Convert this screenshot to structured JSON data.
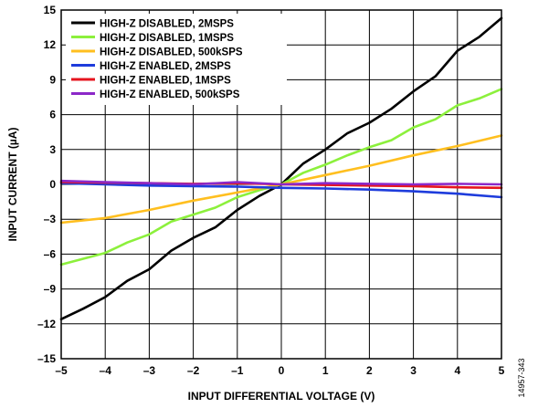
{
  "figure_id": "14957-343",
  "chart_data": {
    "type": "line",
    "xlabel": "INPUT DIFFERENTIAL VOLTAGE (V)",
    "ylabel": "INPUT CURRENT (µA)",
    "xlim": [
      -5,
      5
    ],
    "ylim": [
      -15,
      15
    ],
    "x_ticks": [
      -5,
      -4,
      -3,
      -2,
      -1,
      0,
      1,
      2,
      3,
      4,
      5
    ],
    "y_ticks": [
      -15,
      -12,
      -9,
      -6,
      -3,
      0,
      3,
      6,
      9,
      12,
      15
    ],
    "x_tick_labels": [
      "–5",
      "–4",
      "–3",
      "–2",
      "–1",
      "0",
      "1",
      "2",
      "3",
      "4",
      "5"
    ],
    "y_tick_labels": [
      "–15",
      "–12",
      "–9",
      "–6",
      "–3",
      "0",
      "3",
      "6",
      "9",
      "12",
      "15"
    ],
    "grid": true,
    "legend_position": "top-left",
    "series": [
      {
        "name": "HIGH-Z DISABLED, 2MSPS",
        "color": "#000000",
        "x": [
          -5,
          -4.5,
          -4,
          -3.5,
          -3,
          -2.5,
          -2,
          -1.5,
          -1,
          -0.5,
          0,
          0.5,
          1,
          1.5,
          2,
          2.5,
          3,
          3.5,
          4,
          4.5,
          5
        ],
        "y": [
          -11.6,
          -10.7,
          -9.7,
          -8.3,
          -7.3,
          -5.7,
          -4.6,
          -3.7,
          -2.2,
          -1.0,
          0,
          1.8,
          3.0,
          4.4,
          5.3,
          6.5,
          8.0,
          9.3,
          11.5,
          12.7,
          14.3
        ]
      },
      {
        "name": "HIGH-Z DISABLED, 1MSPS",
        "color": "#8cf03c",
        "x": [
          -5,
          -4.5,
          -4,
          -3.5,
          -3,
          -2.5,
          -2,
          -1.5,
          -1,
          -0.5,
          0,
          0.5,
          1,
          1.5,
          2,
          2.5,
          3,
          3.5,
          4,
          4.5,
          5
        ],
        "y": [
          -6.9,
          -6.4,
          -5.9,
          -5.0,
          -4.3,
          -3.2,
          -2.6,
          -2.0,
          -1.1,
          -0.5,
          0,
          1.0,
          1.7,
          2.5,
          3.2,
          3.8,
          4.9,
          5.6,
          6.8,
          7.4,
          8.2
        ]
      },
      {
        "name": "HIGH-Z DISABLED, 500kSPS",
        "color": "#ffbf1f",
        "x": [
          -5,
          -4,
          -3,
          -2,
          -1,
          0,
          1,
          2,
          3,
          4,
          5
        ],
        "y": [
          -3.3,
          -2.9,
          -2.2,
          -1.4,
          -0.7,
          0,
          0.8,
          1.6,
          2.5,
          3.3,
          4.2
        ]
      },
      {
        "name": "HIGH-Z ENABLED, 2MSPS",
        "color": "#1e3cdc",
        "x": [
          -5,
          -4,
          -3,
          -2,
          -1,
          0,
          1,
          2,
          3,
          4,
          5
        ],
        "y": [
          0.1,
          0.0,
          -0.1,
          -0.15,
          -0.2,
          -0.3,
          -0.35,
          -0.45,
          -0.6,
          -0.8,
          -1.1
        ]
      },
      {
        "name": "HIGH-Z ENABLED, 1MSPS",
        "color": "#e6141e",
        "x": [
          -5,
          -4,
          -3,
          -2,
          -1,
          0,
          1,
          2,
          3,
          4,
          5
        ],
        "y": [
          0.2,
          0.15,
          0.1,
          0.05,
          0.1,
          0.0,
          -0.05,
          -0.1,
          -0.15,
          -0.25,
          -0.3
        ]
      },
      {
        "name": "HIGH-Z ENABLED, 500kSPS",
        "color": "#8c28c8",
        "x": [
          -5,
          -4,
          -3,
          -2,
          -1,
          0,
          1,
          2,
          3,
          4,
          5
        ],
        "y": [
          0.3,
          0.2,
          0.1,
          0.0,
          0.2,
          0.0,
          0.1,
          0.05,
          0.0,
          0.05,
          0.0
        ]
      }
    ]
  }
}
